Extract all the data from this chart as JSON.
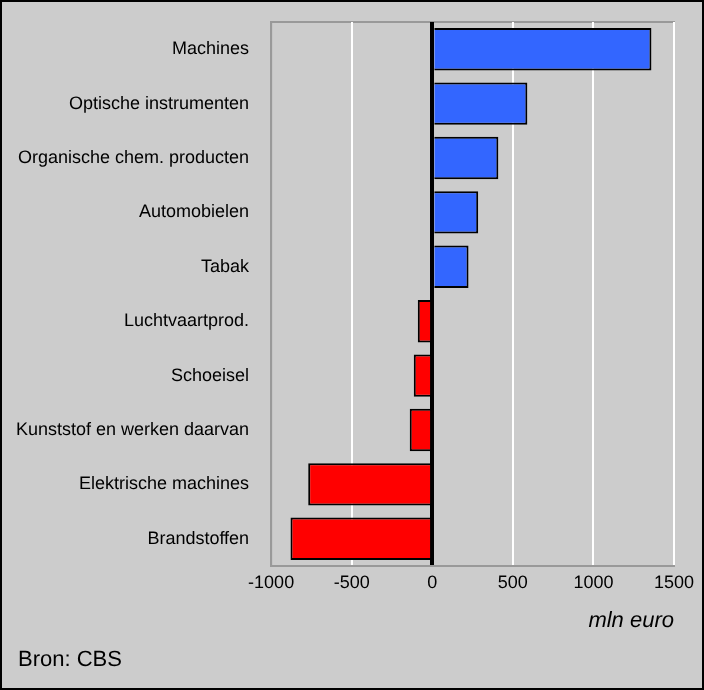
{
  "chart_data": {
    "type": "bar",
    "orientation": "horizontal",
    "xlabel": "mln euro",
    "annotations": [
      "Bron: CBS"
    ],
    "categories": [
      "Machines",
      "Optische instrumenten",
      "Organische chem. producten",
      "Automobielen",
      "Tabak",
      "Luchtvaartprod.",
      "Schoeisel",
      "Kunststof en werken daarvan",
      "Elektrische machines",
      "Brandstoffen"
    ],
    "values": [
      1360,
      590,
      410,
      285,
      225,
      -90,
      -115,
      -140,
      -770,
      -880
    ],
    "colors": [
      "#3366ff",
      "#3366ff",
      "#3366ff",
      "#3366ff",
      "#3366ff",
      "#ff0000",
      "#ff0000",
      "#ff0000",
      "#ff0000",
      "#ff0000"
    ],
    "xlim": [
      -1000,
      1500
    ],
    "xticks": [
      -1000,
      -500,
      0,
      500,
      1000,
      1500
    ],
    "grid": "x",
    "legend": false
  }
}
